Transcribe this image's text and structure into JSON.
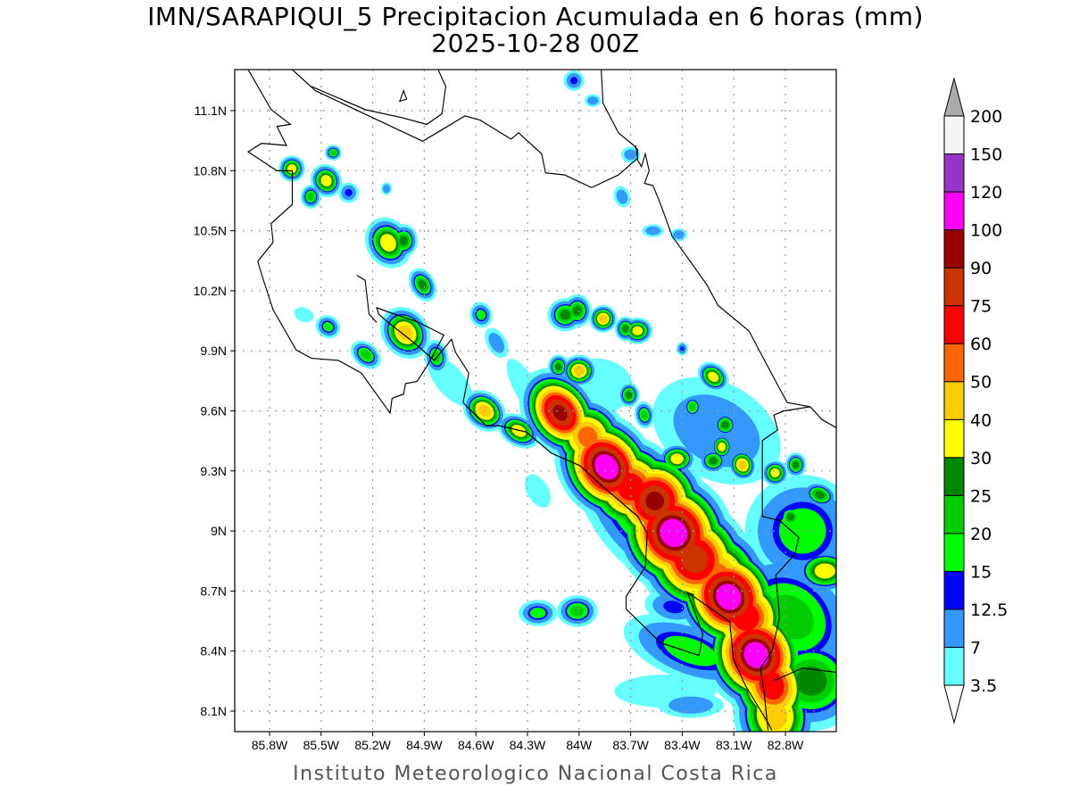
{
  "title": {
    "line1": "IMN/SARAPIQUI_5 Precipitacion Acumulada en 6 horas (mm)",
    "line2": "2025-10-28 00Z"
  },
  "footer": "Instituto Meteorologico Nacional Costa Rica",
  "map": {
    "lon_range": [
      -86.0,
      -82.5
    ],
    "lat_range": [
      8.0,
      11.3
    ],
    "grid": "dotted",
    "lat_ticks": [
      {
        "value": 11.1,
        "label": "11.1N"
      },
      {
        "value": 10.8,
        "label": "10.8N"
      },
      {
        "value": 10.5,
        "label": "10.5N"
      },
      {
        "value": 10.2,
        "label": "10.2N"
      },
      {
        "value": 9.9,
        "label": "9.9N"
      },
      {
        "value": 9.6,
        "label": "9.6N"
      },
      {
        "value": 9.3,
        "label": "9.3N"
      },
      {
        "value": 9.0,
        "label": "9N"
      },
      {
        "value": 8.7,
        "label": "8.7N"
      },
      {
        "value": 8.4,
        "label": "8.4N"
      },
      {
        "value": 8.1,
        "label": "8.1N"
      }
    ],
    "lon_ticks": [
      {
        "value": -85.8,
        "label": "85.8W"
      },
      {
        "value": -85.5,
        "label": "85.5W"
      },
      {
        "value": -85.2,
        "label": "85.2W"
      },
      {
        "value": -84.9,
        "label": "84.9W"
      },
      {
        "value": -84.6,
        "label": "84.6W"
      },
      {
        "value": -84.3,
        "label": "84.3W"
      },
      {
        "value": -84.0,
        "label": "84W"
      },
      {
        "value": -83.7,
        "label": "83.7W"
      },
      {
        "value": -83.4,
        "label": "83.4W"
      },
      {
        "value": -83.1,
        "label": "83.1W"
      },
      {
        "value": -82.8,
        "label": "82.8W"
      }
    ]
  },
  "colorbar": {
    "labels": [
      "3.5",
      "7",
      "12.5",
      "15",
      "20",
      "25",
      "30",
      "40",
      "50",
      "60",
      "75",
      "90",
      "100",
      "120",
      "150",
      "200"
    ],
    "levels": [
      3.5,
      7,
      12.5,
      15,
      20,
      25,
      30,
      40,
      50,
      60,
      75,
      90,
      100,
      120,
      150
    ],
    "colors": [
      "#66ffff",
      "#3399ff",
      "#0000ff",
      "#00ff00",
      "#00cc00",
      "#008800",
      "#ffff00",
      "#ffcc00",
      "#ff6600",
      "#ff0000",
      "#cc3300",
      "#990000",
      "#ff00ff",
      "#9933cc",
      "#f5f5f5"
    ],
    "below_color": "#ffffff",
    "above_color": "#aaaaaa"
  },
  "precip_cells": {
    "fields": [
      "lon",
      "lat",
      "peak_mm",
      "spread_major_deg",
      "spread_minor_deg",
      "orientation_deg"
    ],
    "cells": [
      [
        -85.67,
        10.81,
        40,
        0.035,
        0.03,
        0
      ],
      [
        -85.47,
        10.75,
        40,
        0.045,
        0.035,
        60
      ],
      [
        -85.56,
        10.67,
        25,
        0.03,
        0.03,
        0
      ],
      [
        -85.43,
        10.89,
        25,
        0.025,
        0.02,
        0
      ],
      [
        -85.34,
        10.69,
        15,
        0.035,
        0.03,
        0
      ],
      [
        -85.12,
        10.71,
        12.5,
        0.02,
        0.02,
        0
      ],
      [
        -85.11,
        10.44,
        40,
        0.07,
        0.05,
        60
      ],
      [
        -85.02,
        10.45,
        30,
        0.04,
        0.04,
        0
      ],
      [
        -84.91,
        10.23,
        30,
        0.05,
        0.03,
        60
      ],
      [
        -85.01,
        9.99,
        50,
        0.07,
        0.05,
        50
      ],
      [
        -84.83,
        9.87,
        25,
        0.05,
        0.03,
        80
      ],
      [
        -85.46,
        10.02,
        20,
        0.04,
        0.03,
        30
      ],
      [
        -85.24,
        9.88,
        25,
        0.05,
        0.03,
        40
      ],
      [
        -85.6,
        10.08,
        7,
        0.05,
        0.03,
        20
      ],
      [
        -84.55,
        9.6,
        50,
        0.06,
        0.04,
        40
      ],
      [
        -84.35,
        9.5,
        40,
        0.06,
        0.035,
        30
      ],
      [
        -84.57,
        10.08,
        20,
        0.04,
        0.03,
        70
      ],
      [
        -84.48,
        9.94,
        12.5,
        0.06,
        0.03,
        60
      ],
      [
        -84.08,
        10.08,
        30,
        0.05,
        0.04,
        0
      ],
      [
        -84.01,
        10.1,
        30,
        0.04,
        0.04,
        0
      ],
      [
        -83.86,
        10.06,
        50,
        0.035,
        0.03,
        0
      ],
      [
        -83.66,
        10.0,
        40,
        0.04,
        0.03,
        0
      ],
      [
        -83.73,
        10.01,
        30,
        0.03,
        0.03,
        0
      ],
      [
        -84.12,
        9.82,
        30,
        0.03,
        0.03,
        0
      ],
      [
        -84.0,
        9.8,
        50,
        0.045,
        0.035,
        0
      ],
      [
        -83.71,
        9.68,
        30,
        0.03,
        0.03,
        0
      ],
      [
        -83.62,
        9.58,
        25,
        0.04,
        0.025,
        80
      ],
      [
        -83.4,
        9.91,
        15,
        0.02,
        0.02,
        0
      ],
      [
        -83.22,
        9.77,
        40,
        0.045,
        0.03,
        40
      ],
      [
        -83.34,
        9.62,
        25,
        0.03,
        0.03,
        0
      ],
      [
        -83.15,
        9.53,
        30,
        0.035,
        0.03,
        0
      ],
      [
        -83.43,
        9.36,
        40,
        0.05,
        0.035,
        0
      ],
      [
        -83.22,
        9.35,
        30,
        0.04,
        0.03,
        0
      ],
      [
        -83.17,
        9.42,
        40,
        0.03,
        0.03,
        0
      ],
      [
        -83.05,
        9.33,
        50,
        0.04,
        0.03,
        70
      ],
      [
        -82.86,
        9.29,
        40,
        0.035,
        0.03,
        0
      ],
      [
        -82.74,
        9.33,
        30,
        0.03,
        0.03,
        0
      ],
      [
        -82.77,
        9.07,
        30,
        0.035,
        0.03,
        0
      ],
      [
        -82.6,
        9.18,
        30,
        0.05,
        0.03,
        20
      ],
      [
        -82.57,
        8.8,
        40,
        0.08,
        0.05,
        0
      ],
      [
        -84.11,
        9.59,
        100,
        0.11,
        0.07,
        54
      ],
      [
        -83.95,
        9.47,
        60,
        0.1,
        0.08,
        54
      ],
      [
        -83.84,
        9.32,
        120,
        0.13,
        0.09,
        54
      ],
      [
        -83.7,
        9.22,
        75,
        0.12,
        0.1,
        54
      ],
      [
        -83.56,
        9.15,
        100,
        0.12,
        0.1,
        54
      ],
      [
        -83.45,
        8.99,
        120,
        0.14,
        0.11,
        54
      ],
      [
        -83.41,
        8.93,
        90,
        0.12,
        0.1,
        54
      ],
      [
        -83.33,
        8.86,
        90,
        0.14,
        0.11,
        54
      ],
      [
        -83.2,
        8.77,
        60,
        0.14,
        0.11,
        54
      ],
      [
        -83.13,
        8.67,
        120,
        0.13,
        0.1,
        54
      ],
      [
        -83.03,
        8.57,
        75,
        0.12,
        0.1,
        54
      ],
      [
        -82.97,
        8.38,
        120,
        0.13,
        0.1,
        60
      ],
      [
        -82.88,
        8.23,
        75,
        0.13,
        0.09,
        70
      ],
      [
        -82.86,
        8.08,
        50,
        0.13,
        0.09,
        80
      ],
      [
        -83.65,
        9.1,
        25,
        0.25,
        0.12,
        54
      ],
      [
        -82.77,
        8.57,
        25,
        0.22,
        0.15,
        40
      ],
      [
        -82.65,
        8.25,
        30,
        0.15,
        0.12,
        0
      ],
      [
        -83.35,
        8.4,
        20,
        0.22,
        0.08,
        20
      ],
      [
        -84.24,
        8.59,
        20,
        0.06,
        0.035,
        0
      ],
      [
        -84.01,
        8.6,
        25,
        0.06,
        0.04,
        0
      ],
      [
        -83.45,
        8.62,
        15,
        0.1,
        0.05,
        10
      ],
      [
        -84.24,
        9.2,
        7,
        0.09,
        0.045,
        60
      ],
      [
        -83.35,
        8.13,
        12.5,
        0.12,
        0.04,
        0
      ],
      [
        -83.5,
        8.2,
        7,
        0.25,
        0.07,
        0
      ],
      [
        -84.03,
        11.25,
        15,
        0.035,
        0.03,
        0
      ],
      [
        -83.92,
        11.15,
        12.5,
        0.03,
        0.02,
        0
      ],
      [
        -83.75,
        10.67,
        12.5,
        0.04,
        0.025,
        70
      ],
      [
        -83.57,
        10.5,
        12.5,
        0.04,
        0.02,
        0
      ],
      [
        -83.42,
        10.48,
        12.5,
        0.03,
        0.02,
        0
      ],
      [
        -83.7,
        10.88,
        12.5,
        0.035,
        0.025,
        0
      ],
      [
        -84.3,
        9.7,
        7,
        0.18,
        0.05,
        60
      ],
      [
        -84.75,
        9.75,
        7,
        0.15,
        0.06,
        50
      ],
      [
        -83.9,
        9.72,
        7,
        0.18,
        0.12,
        0
      ],
      [
        -83.2,
        9.5,
        12.5,
        0.25,
        0.15,
        30
      ],
      [
        -82.7,
        9.0,
        20,
        0.18,
        0.15,
        0
      ]
    ]
  }
}
